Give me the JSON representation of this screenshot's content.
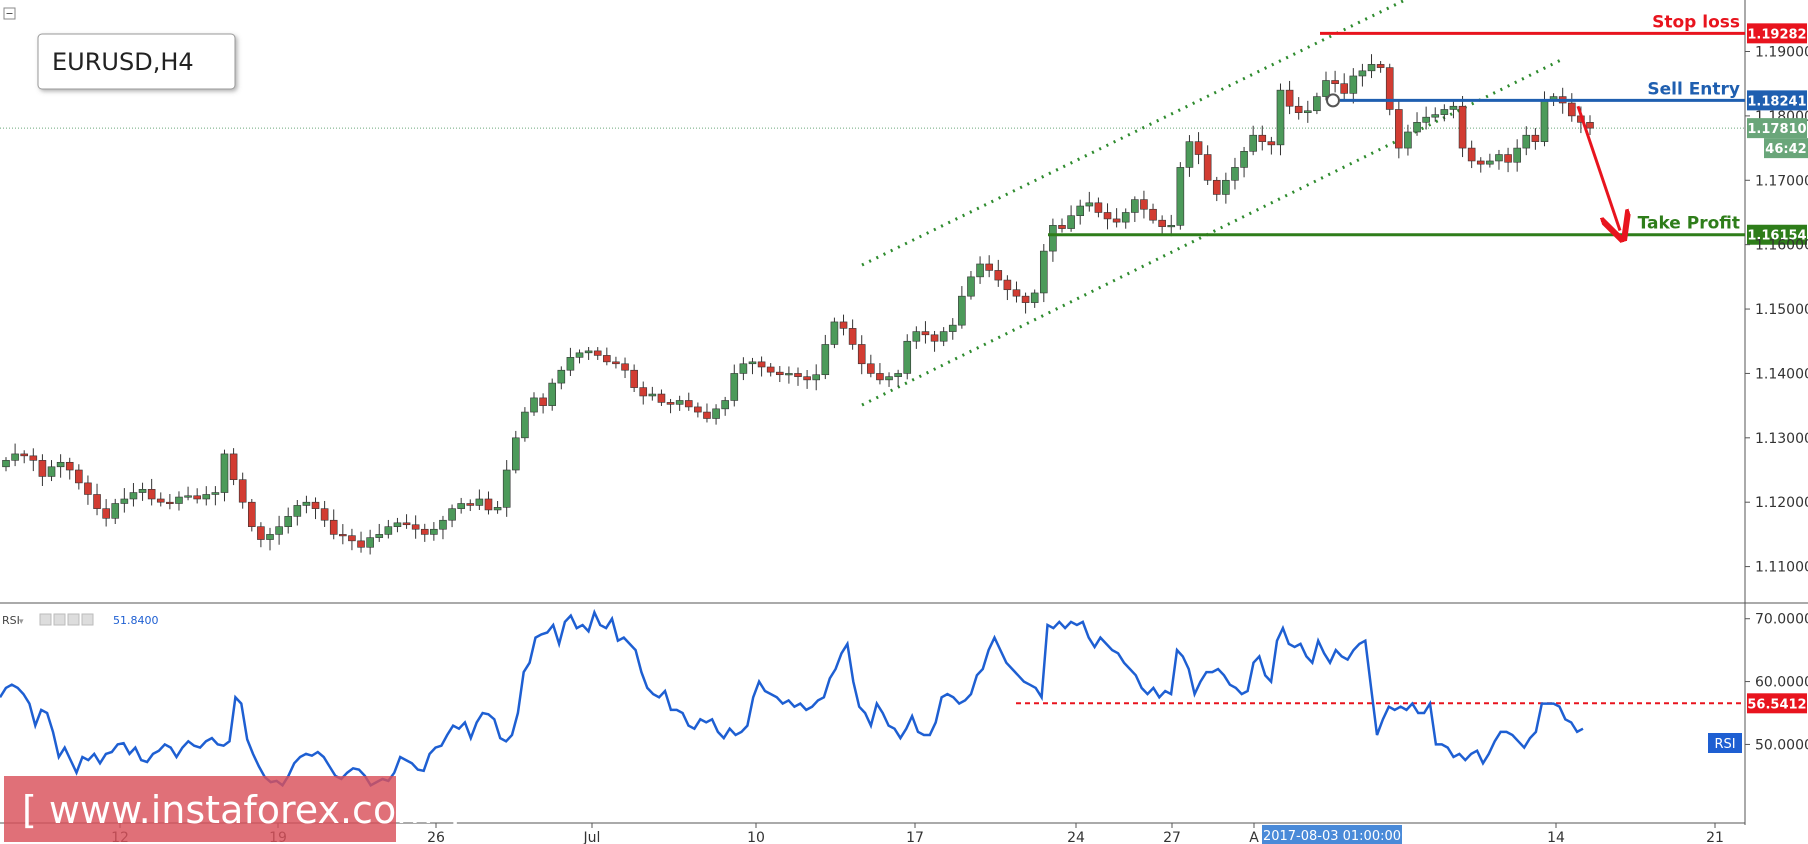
{
  "chart_data": [
    {
      "type": "candlestick",
      "symbol_label": "EURUSD,H4",
      "y_axis": {
        "range": [
          1.1045,
          1.198
        ],
        "ticks": [
          "1.19000",
          "1.18000",
          "1.17000",
          "1.16000",
          "1.15000",
          "1.14000",
          "1.13000",
          "1.12000",
          "1.11000"
        ]
      },
      "x_axis": {
        "ticks": [
          "12",
          "19",
          "26",
          "Jul",
          "10",
          "17",
          "24",
          "27",
          "A",
          "14",
          "21"
        ],
        "crosshair_label": "2017-08-03 01:00:00"
      },
      "levels": [
        {
          "name": "Stop loss",
          "label": "Stop loss",
          "value": "1.19282",
          "color": "#e8141e"
        },
        {
          "name": "Sell Entry",
          "label": "Sell Entry",
          "value": "1.18241",
          "color": "#1f5fb0"
        },
        {
          "name": "Take Profit",
          "label": "Take Profit",
          "value": "1.16154",
          "color": "#2e7d1a"
        }
      ],
      "current_price": {
        "value": "1.17810",
        "countdown": "46:42",
        "color": "#6aa67a"
      },
      "candles_close_path": [
        [
          0,
          1.1265
        ],
        [
          1,
          1.1275
        ],
        [
          2,
          1.1272
        ],
        [
          3,
          1.1265
        ],
        [
          4,
          1.124
        ],
        [
          5,
          1.1255
        ],
        [
          6,
          1.1262
        ],
        [
          7,
          1.125
        ],
        [
          8,
          1.123
        ],
        [
          9,
          1.1212
        ],
        [
          10,
          1.119
        ],
        [
          11,
          1.1175
        ],
        [
          12,
          1.1198
        ],
        [
          13,
          1.1205
        ],
        [
          14,
          1.1215
        ],
        [
          15,
          1.122
        ],
        [
          16,
          1.1205
        ],
        [
          17,
          1.12
        ],
        [
          18,
          1.1198
        ],
        [
          19,
          1.1208
        ],
        [
          20,
          1.121
        ],
        [
          21,
          1.1205
        ],
        [
          22,
          1.1212
        ],
        [
          23,
          1.1215
        ],
        [
          24,
          1.1275
        ],
        [
          25,
          1.1235
        ],
        [
          26,
          1.12
        ],
        [
          27,
          1.1162
        ],
        [
          28,
          1.1142
        ],
        [
          29,
          1.115
        ],
        [
          30,
          1.1162
        ],
        [
          31,
          1.1178
        ],
        [
          32,
          1.1195
        ],
        [
          33,
          1.12
        ],
        [
          34,
          1.119
        ],
        [
          35,
          1.1172
        ],
        [
          36,
          1.115
        ],
        [
          37,
          1.1148
        ],
        [
          38,
          1.114
        ],
        [
          39,
          1.113
        ],
        [
          40,
          1.1145
        ],
        [
          41,
          1.115
        ],
        [
          42,
          1.1162
        ],
        [
          43,
          1.1168
        ],
        [
          44,
          1.1165
        ],
        [
          45,
          1.1158
        ],
        [
          46,
          1.115
        ],
        [
          47,
          1.1158
        ],
        [
          48,
          1.1172
        ],
        [
          49,
          1.119
        ],
        [
          50,
          1.1198
        ],
        [
          51,
          1.1195
        ],
        [
          52,
          1.1205
        ],
        [
          53,
          1.1188
        ],
        [
          54,
          1.1192
        ],
        [
          55,
          1.125
        ],
        [
          56,
          1.13
        ],
        [
          57,
          1.134
        ],
        [
          58,
          1.1362
        ],
        [
          59,
          1.135
        ],
        [
          60,
          1.1385
        ],
        [
          61,
          1.1405
        ],
        [
          62,
          1.1425
        ],
        [
          63,
          1.1432
        ],
        [
          64,
          1.1435
        ],
        [
          65,
          1.1428
        ],
        [
          66,
          1.1418
        ],
        [
          67,
          1.1415
        ],
        [
          68,
          1.1405
        ],
        [
          69,
          1.1378
        ],
        [
          70,
          1.1365
        ],
        [
          71,
          1.1368
        ],
        [
          72,
          1.1355
        ],
        [
          73,
          1.1352
        ],
        [
          74,
          1.1358
        ],
        [
          75,
          1.1348
        ],
        [
          76,
          1.134
        ],
        [
          77,
          1.133
        ],
        [
          78,
          1.1345
        ],
        [
          79,
          1.1358
        ],
        [
          80,
          1.14
        ],
        [
          81,
          1.1415
        ],
        [
          82,
          1.1418
        ],
        [
          83,
          1.141
        ],
        [
          84,
          1.1402
        ],
        [
          85,
          1.1398
        ],
        [
          86,
          1.14
        ],
        [
          87,
          1.1395
        ],
        [
          88,
          1.139
        ],
        [
          89,
          1.1398
        ],
        [
          90,
          1.1445
        ],
        [
          91,
          1.148
        ],
        [
          92,
          1.147
        ],
        [
          93,
          1.1445
        ],
        [
          94,
          1.1415
        ],
        [
          95,
          1.14
        ],
        [
          96,
          1.139
        ],
        [
          97,
          1.1395
        ],
        [
          98,
          1.14
        ],
        [
          99,
          1.145
        ],
        [
          100,
          1.1465
        ],
        [
          101,
          1.146
        ],
        [
          102,
          1.145
        ],
        [
          103,
          1.1465
        ],
        [
          104,
          1.1475
        ],
        [
          105,
          1.152
        ],
        [
          106,
          1.155
        ],
        [
          107,
          1.157
        ],
        [
          108,
          1.156
        ],
        [
          109,
          1.1545
        ],
        [
          110,
          1.153
        ],
        [
          111,
          1.152
        ],
        [
          112,
          1.151
        ],
        [
          113,
          1.1525
        ],
        [
          114,
          1.159
        ],
        [
          115,
          1.163
        ],
        [
          116,
          1.1625
        ],
        [
          117,
          1.1645
        ],
        [
          118,
          1.166
        ],
        [
          119,
          1.1665
        ],
        [
          120,
          1.165
        ],
        [
          121,
          1.164
        ],
        [
          122,
          1.1635
        ],
        [
          123,
          1.165
        ],
        [
          124,
          1.167
        ],
        [
          125,
          1.1655
        ],
        [
          126,
          1.1638
        ],
        [
          127,
          1.1628
        ],
        [
          128,
          1.163
        ],
        [
          129,
          1.172
        ],
        [
          130,
          1.176
        ],
        [
          131,
          1.174
        ],
        [
          132,
          1.17
        ],
        [
          133,
          1.1678
        ],
        [
          134,
          1.17
        ],
        [
          135,
          1.172
        ],
        [
          136,
          1.1745
        ],
        [
          137,
          1.177
        ],
        [
          138,
          1.176
        ],
        [
          139,
          1.1755
        ],
        [
          140,
          1.184
        ],
        [
          141,
          1.1815
        ],
        [
          142,
          1.1805
        ],
        [
          143,
          1.1808
        ],
        [
          144,
          1.183
        ],
        [
          145,
          1.1855
        ],
        [
          146,
          1.185
        ],
        [
          147,
          1.1835
        ],
        [
          148,
          1.1862
        ],
        [
          149,
          1.187
        ],
        [
          150,
          1.188
        ],
        [
          151,
          1.1875
        ],
        [
          152,
          1.181
        ],
        [
          153,
          1.175
        ],
        [
          154,
          1.1775
        ],
        [
          155,
          1.179
        ],
        [
          156,
          1.1798
        ],
        [
          157,
          1.1802
        ],
        [
          158,
          1.181
        ],
        [
          159,
          1.1815
        ],
        [
          160,
          1.175
        ],
        [
          161,
          1.173
        ],
        [
          162,
          1.1725
        ],
        [
          163,
          1.173
        ],
        [
          164,
          1.174
        ],
        [
          165,
          1.1728
        ],
        [
          166,
          1.175
        ],
        [
          167,
          1.177
        ],
        [
          168,
          1.176
        ],
        [
          169,
          1.1825
        ],
        [
          170,
          1.183
        ],
        [
          171,
          1.182
        ],
        [
          172,
          1.18
        ],
        [
          173,
          1.179
        ],
        [
          174,
          1.1781
        ]
      ],
      "trend_channel": {
        "style": "dotted",
        "color": "#2e8b2e"
      },
      "arrow": {
        "direction": "down",
        "color": "#e8141e"
      }
    },
    {
      "type": "line",
      "indicator": "RSI",
      "legend_value": "51.8400",
      "y_axis": {
        "range": [
          37.5,
          72.5
        ],
        "ticks": [
          "70.0000",
          "60.0000",
          "50.0000"
        ]
      },
      "level": {
        "value": "56.5412",
        "color": "#e8141e"
      },
      "series_label": "RSI",
      "values": [
        57.5,
        59.0,
        59.5,
        59.0,
        58.0,
        56.5,
        53.0,
        55.5,
        55.0,
        52.0,
        48.0,
        49.5,
        47.5,
        45.5,
        48.0,
        47.5,
        48.5,
        47.0,
        48.5,
        48.8,
        50.0,
        50.2,
        48.5,
        49.5,
        47.5,
        47.2,
        48.5,
        49.0,
        50.0,
        49.5,
        48.0,
        49.5,
        50.5,
        49.8,
        49.5,
        50.5,
        51.0,
        50.0,
        49.8,
        50.5,
        57.5,
        56.5,
        50.8,
        48.5,
        46.5,
        44.8,
        44.0,
        44.2,
        43.5,
        45.0,
        47.0,
        48.0,
        48.5,
        48.2,
        48.8,
        48.0,
        46.5,
        45.0,
        44.5,
        45.5,
        46.2,
        46.0,
        45.0,
        43.5,
        44.0,
        44.5,
        44.2,
        45.5,
        48.0,
        47.5,
        47.0,
        46.0,
        45.8,
        48.5,
        49.5,
        49.8,
        51.5,
        53.0,
        52.5,
        53.5,
        51.0,
        53.5,
        55.0,
        54.8,
        54.0,
        51.0,
        50.5,
        51.5,
        55.0,
        61.5,
        63.0,
        67.0,
        67.5,
        67.8,
        69.0,
        66.0,
        69.5,
        70.5,
        68.5,
        69.0,
        68.0,
        71.0,
        69.0,
        68.5,
        70.0,
        66.5,
        67.0,
        66.0,
        65.0,
        61.5,
        59.0,
        58.0,
        57.5,
        58.5,
        55.5,
        55.5,
        55.0,
        53.0,
        52.5,
        54.0,
        53.5,
        54.0,
        52.0,
        51.0,
        52.5,
        51.5,
        52.0,
        53.0,
        57.5,
        60.0,
        58.5,
        58.0,
        57.5,
        56.5,
        57.0,
        56.0,
        56.5,
        55.5,
        56.0,
        57.0,
        57.5,
        60.5,
        62.0,
        64.5,
        66.0,
        60.0,
        56.0,
        55.0,
        53.0,
        56.5,
        55.0,
        53.0,
        52.5,
        51.0,
        52.5,
        54.5,
        52.0,
        51.5,
        51.5,
        53.5,
        57.5,
        58.0,
        57.5,
        56.5,
        57.0,
        58.0,
        61.0,
        62.0,
        65.0,
        67.0,
        65.0,
        63.0,
        62.0,
        61.0,
        60.0,
        59.5,
        59.0,
        57.5,
        69.0,
        68.5,
        69.5,
        68.5,
        69.5,
        69.0,
        69.5,
        67.0,
        65.5,
        67.0,
        66.0,
        65.0,
        64.5,
        63.0,
        62.0,
        61.0,
        59.0,
        58.0,
        59.0,
        57.5,
        58.5,
        58.0,
        65.0,
        64.0,
        62.0,
        58.0,
        60.0,
        61.5,
        61.5,
        62.0,
        61.0,
        59.5,
        59.0,
        58.0,
        58.5,
        63.0,
        64.0,
        61.0,
        60.0,
        66.5,
        68.5,
        66.0,
        65.5,
        66.0,
        64.0,
        63.0,
        66.5,
        64.5,
        63.0,
        65.0,
        64.0,
        63.5,
        65.0,
        66.0,
        66.5,
        59.0,
        51.5,
        54.0,
        56.0,
        55.5,
        56.0,
        55.5,
        56.5,
        55.0,
        55.0,
        56.5,
        50.0,
        50.0,
        49.5,
        48.0,
        48.5,
        47.5,
        48.5,
        49.0,
        47.0,
        48.5,
        50.5,
        52.0,
        52.0,
        51.5,
        50.5,
        49.5,
        51.0,
        52.0,
        56.5,
        56.5,
        56.5,
        56.0,
        54.0,
        53.5,
        52.0,
        52.5
      ]
    }
  ],
  "watermark": "[ www.instaforex.com ]",
  "colors": {
    "bull": "#4c9a5a",
    "bear": "#d23c32",
    "rsi_line": "#1e5fd2",
    "axis_text": "#333333"
  }
}
